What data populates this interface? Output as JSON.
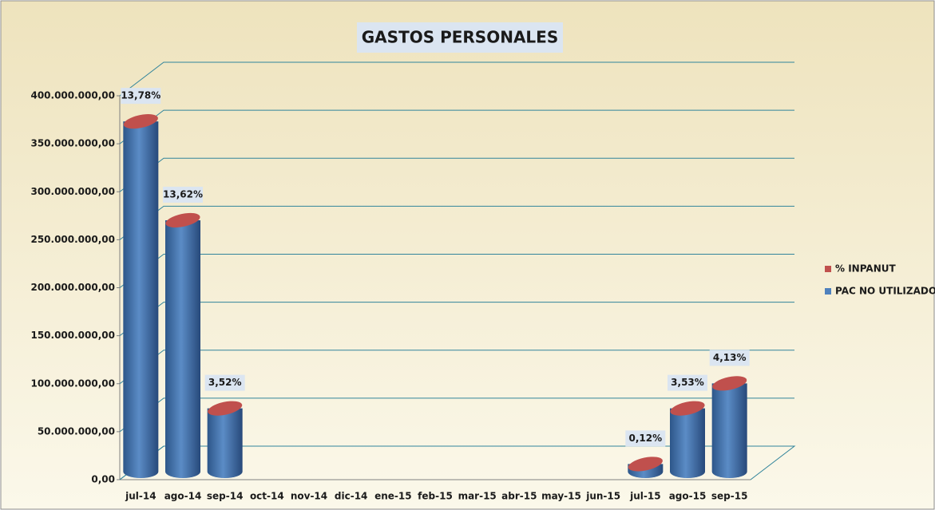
{
  "chart_data": {
    "type": "bar3d",
    "title": "GASTOS PERSONALES",
    "categories": [
      "jul-14",
      "ago-14",
      "sep-14",
      "oct-14",
      "nov-14",
      "dic-14",
      "ene-15",
      "feb-15",
      "mar-15",
      "abr-15",
      "may-15",
      "jun-15",
      "jul-15",
      "ago-15",
      "sep-15"
    ],
    "series": [
      {
        "name": "% INPANUT",
        "color": "#c0504d",
        "values": [
          13.78,
          13.62,
          3.52,
          null,
          null,
          null,
          null,
          null,
          null,
          null,
          null,
          null,
          0.12,
          3.53,
          4.13
        ],
        "value_labels": [
          "13,78%",
          "13,62%",
          "3,52%",
          null,
          null,
          null,
          null,
          null,
          null,
          null,
          null,
          null,
          "0,12%",
          "3,53%",
          "4,13%"
        ]
      },
      {
        "name": "PAC NO UTILIZADO",
        "color": "#4f81bd",
        "values": [
          365000000,
          262000000,
          66000000,
          null,
          null,
          null,
          null,
          null,
          null,
          null,
          null,
          null,
          8000000,
          66000000,
          92000000
        ]
      }
    ],
    "ylim": [
      0,
      400000000
    ],
    "yticks": [
      {
        "value": 0,
        "label": "0,00"
      },
      {
        "value": 50000000,
        "label": "50.000.000,00"
      },
      {
        "value": 100000000,
        "label": "100.000.000,00"
      },
      {
        "value": 150000000,
        "label": "150.000.000,00"
      },
      {
        "value": 200000000,
        "label": "200.000.000,00"
      },
      {
        "value": 250000000,
        "label": "250.000.000,00"
      },
      {
        "value": 300000000,
        "label": "300.000.000,00"
      },
      {
        "value": 350000000,
        "label": "350.000.000,00"
      },
      {
        "value": 400000000,
        "label": "400.000.000,00"
      }
    ],
    "grid": true,
    "legend": "right"
  }
}
